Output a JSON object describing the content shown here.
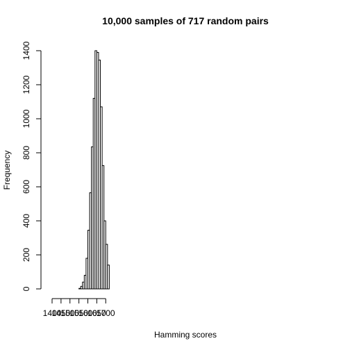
{
  "chart_data": {
    "type": "bar",
    "title": "10,000 samples of 717 random pairs",
    "xlabel": "Hamming scores",
    "ylabel": "Frequency",
    "bin_width": 10,
    "xlim": [
      1400,
      1710
    ],
    "ylim": [
      0,
      1400
    ],
    "x_ticks": [
      1400,
      1450,
      1500,
      1550,
      1600,
      1650,
      1700
    ],
    "y_ticks": [
      0,
      200,
      400,
      600,
      800,
      1000,
      1200,
      1400
    ],
    "bins": [
      {
        "start": 1550,
        "end": 1560,
        "count": 3
      },
      {
        "start": 1560,
        "end": 1570,
        "count": 15
      },
      {
        "start": 1570,
        "end": 1580,
        "count": 40
      },
      {
        "start": 1580,
        "end": 1590,
        "count": 80
      },
      {
        "start": 1590,
        "end": 1600,
        "count": 180
      },
      {
        "start": 1600,
        "end": 1610,
        "count": 345
      },
      {
        "start": 1610,
        "end": 1620,
        "count": 565
      },
      {
        "start": 1620,
        "end": 1630,
        "count": 835
      },
      {
        "start": 1630,
        "end": 1640,
        "count": 1120
      },
      {
        "start": 1640,
        "end": 1650,
        "count": 1400
      },
      {
        "start": 1650,
        "end": 1660,
        "count": 1390
      },
      {
        "start": 1660,
        "end": 1670,
        "count": 1345
      },
      {
        "start": 1670,
        "end": 1680,
        "count": 1070
      },
      {
        "start": 1680,
        "end": 1690,
        "count": 725
      },
      {
        "start": 1690,
        "end": 1700,
        "count": 400
      },
      {
        "start": 1700,
        "end": 1710,
        "count": 262
      },
      {
        "start": 1710,
        "end": 1720,
        "count": 140
      }
    ]
  }
}
